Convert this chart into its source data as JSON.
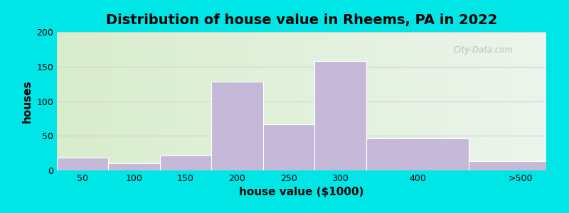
{
  "title": "Distribution of house value in Rheems, PA in 2022",
  "xlabel": "house value ($1000)",
  "ylabel": "houses",
  "bar_color": "#c5b8d8",
  "bar_edgecolor": "#ffffff",
  "background_outer": "#00e5e5",
  "ylim": [
    0,
    200
  ],
  "yticks": [
    0,
    50,
    100,
    150,
    200
  ],
  "xtick_labels": [
    "50",
    "100",
    "150",
    "200",
    "250",
    "300",
    "400",
    ">500"
  ],
  "xtick_positions": [
    0.5,
    1.5,
    2.5,
    3.5,
    4.5,
    5.5,
    7.0,
    9.0
  ],
  "bar_lefts": [
    0.0,
    1.0,
    2.0,
    3.0,
    4.0,
    5.0,
    6.0,
    8.0
  ],
  "bar_widths": [
    1.0,
    1.0,
    1.0,
    1.0,
    1.0,
    1.0,
    2.0,
    1.5
  ],
  "bar_heights": [
    18,
    10,
    22,
    128,
    67,
    158,
    46,
    13
  ],
  "xlim": [
    0.0,
    9.5
  ],
  "title_fontsize": 14,
  "axis_label_fontsize": 11,
  "tick_fontsize": 9,
  "grid_color": "#cccccc",
  "watermark_text": "City-Data.com",
  "watermark_color": "#b0b8b8"
}
